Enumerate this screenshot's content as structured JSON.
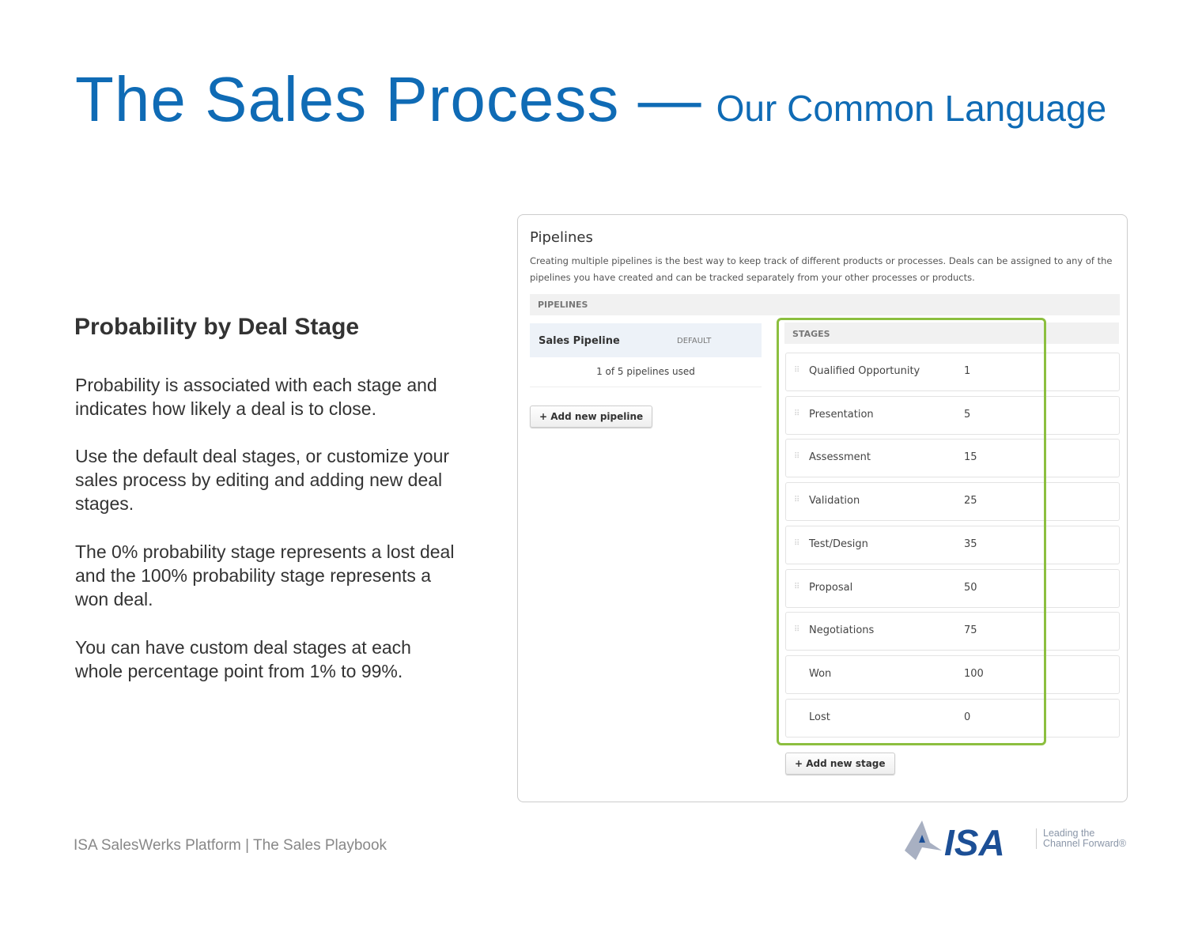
{
  "slide": {
    "title": "The Sales Process —",
    "subtitle": "Our Common Language",
    "heading": "Probability by Deal Stage",
    "paragraphs": [
      "Probability is associated with each stage and indicates how likely a deal is to close.",
      "Use the default deal stages, or customize your sales process by editing and adding new deal stages.",
      "The 0% probability stage represents a lost deal and the 100% probability stage represents a won deal.",
      "You can have custom deal stages at each whole percentage point from 1% to 99%."
    ],
    "footer": "ISA SalesWerks Platform | The Sales Playbook",
    "accent_color": "#0f6bb5"
  },
  "screenshot": {
    "title": "Pipelines",
    "description": "Creating multiple pipelines is the best way to keep track of different products or processes. Deals can be assigned to any of the pipelines you have created and can be tracked separately from your other processes or products.",
    "pipelines_header": "PIPELINES",
    "pipeline": {
      "name": "Sales Pipeline",
      "badge": "DEFAULT"
    },
    "usage": "1 of 5 pipelines used",
    "add_pipeline": "+ Add new pipeline",
    "stages_header": "STAGES",
    "stages": [
      {
        "label": "Qualified Opportunity",
        "value": "1",
        "draggable": true
      },
      {
        "label": "Presentation",
        "value": "5",
        "draggable": true
      },
      {
        "label": "Assessment",
        "value": "15",
        "draggable": true
      },
      {
        "label": "Validation",
        "value": "25",
        "draggable": true
      },
      {
        "label": "Test/Design",
        "value": "35",
        "draggable": true
      },
      {
        "label": "Proposal",
        "value": "50",
        "draggable": true
      },
      {
        "label": "Negotiations",
        "value": "75",
        "draggable": true
      },
      {
        "label": "Won",
        "value": "100",
        "draggable": false
      },
      {
        "label": "Lost",
        "value": "0",
        "draggable": false
      }
    ],
    "add_stage": "+ Add new stage",
    "highlight_color": "#8cbf3f"
  },
  "logo": {
    "text": "ISA",
    "tagline_1": "Leading the",
    "tagline_2": "Channel Forward®"
  }
}
